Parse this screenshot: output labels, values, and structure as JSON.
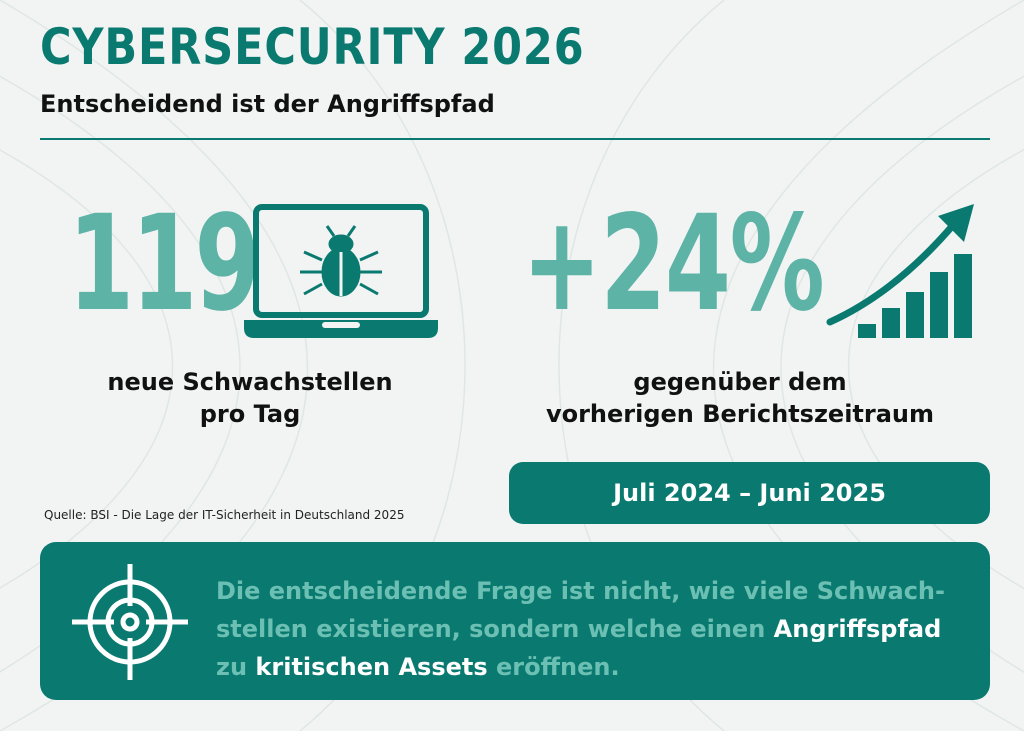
{
  "header": {
    "title": "CYBERSECURITY 2026",
    "subtitle": "Entscheidend ist der Angriffspfad"
  },
  "stat_left": {
    "number": "119",
    "caption_line1": "neue Schwachstellen",
    "caption_line2": "pro Tag",
    "icon": "laptop-bug-icon"
  },
  "stat_right": {
    "number": "+24%",
    "caption_line1": "gegenüber dem",
    "caption_line2": "vorherigen Berichtszeitraum",
    "icon": "growth-chart-icon"
  },
  "period": "Juli 2024 – Juni 2025",
  "source": "Quelle: BSI - Die Lage der IT-Sicherheit in Deutschland 2025",
  "quote": {
    "part1": "Die entscheidende Frage ist nicht, wie viele Schwach-stellen existieren, sondern welche einen ",
    "highlight1": "Angriffspfad",
    "part2": " zu ",
    "highlight2": "kritischen Assets",
    "part3": " eröffnen.",
    "icon": "target-crosshair-icon"
  },
  "colors": {
    "primary": "#0a7a70",
    "accent": "#5db3a6",
    "background": "#f1f4f3"
  }
}
